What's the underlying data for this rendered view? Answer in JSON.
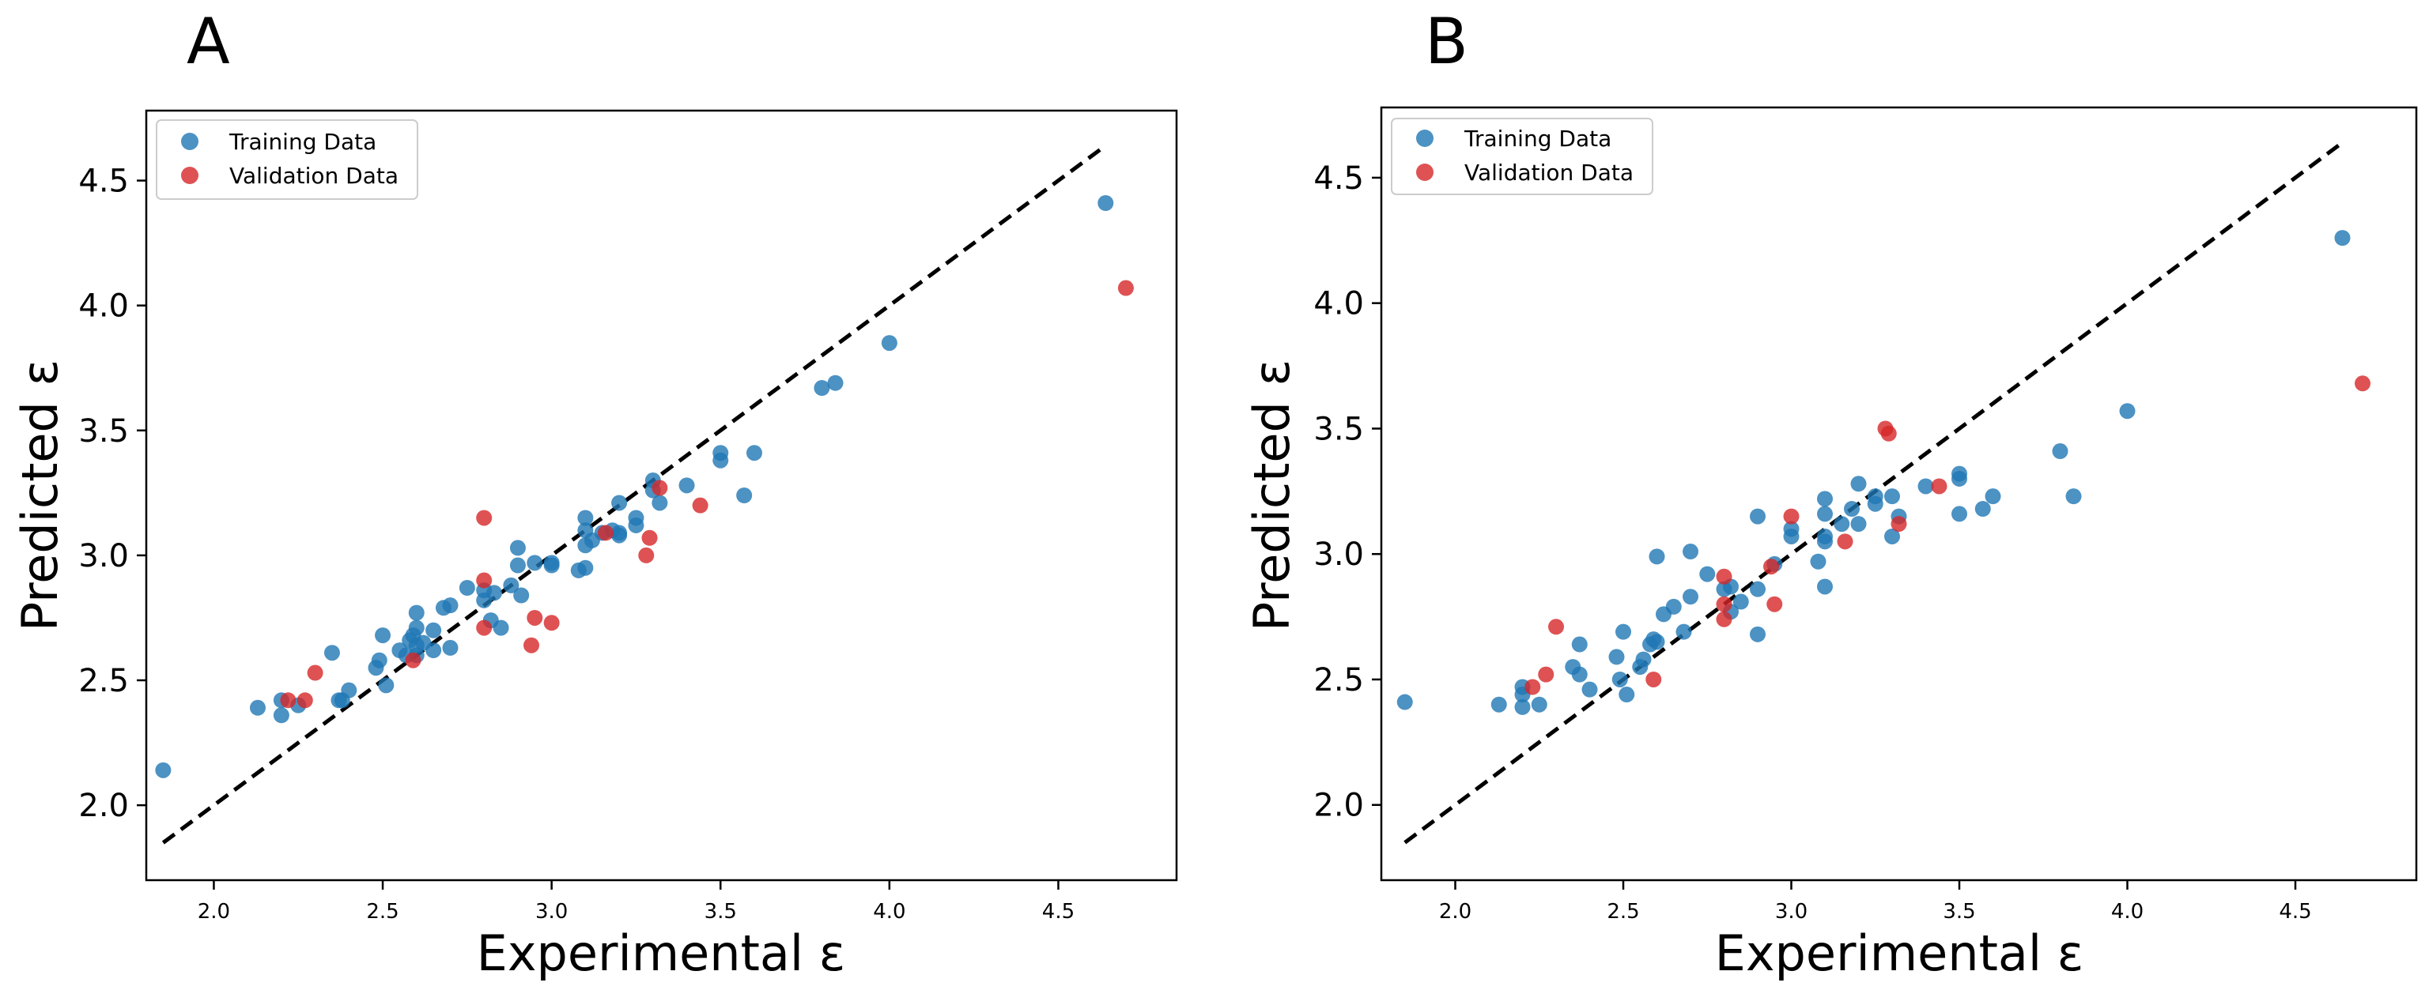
{
  "colors": {
    "training": "#1f77b4",
    "validation": "#d62728",
    "identity_line": "#000000"
  },
  "chart_data": [
    {
      "type": "scatter",
      "panel_label": "A",
      "xlabel": "Experimental ε",
      "ylabel": "Predicted ε",
      "xlim": [
        1.8,
        4.85
      ],
      "ylim": [
        1.7,
        4.78
      ],
      "xticks": [
        2.0,
        2.5,
        3.0,
        3.5,
        4.0,
        4.5
      ],
      "xtick_labels": [
        "2.0",
        "2.5",
        "3.0",
        "3.5",
        "4.0",
        "4.5"
      ],
      "yticks": [
        2.0,
        2.5,
        3.0,
        3.5,
        4.0,
        4.5
      ],
      "ytick_labels": [
        "2.0",
        "2.5",
        "3.0",
        "3.5",
        "4.0",
        "4.5"
      ],
      "legend": {
        "position": "top-left",
        "entries": [
          "Training Data",
          "Validation Data"
        ]
      },
      "grid": false,
      "identity_line": {
        "from": [
          1.85,
          1.85
        ],
        "to": [
          4.64,
          4.64
        ],
        "style": "dashed"
      },
      "series": [
        {
          "name": "Training Data",
          "points": [
            [
              1.85,
              2.14
            ],
            [
              2.13,
              2.39
            ],
            [
              2.2,
              2.36
            ],
            [
              2.2,
              2.42
            ],
            [
              2.25,
              2.4
            ],
            [
              2.35,
              2.61
            ],
            [
              2.37,
              2.42
            ],
            [
              2.38,
              2.42
            ],
            [
              2.4,
              2.46
            ],
            [
              2.48,
              2.55
            ],
            [
              2.49,
              2.58
            ],
            [
              2.5,
              2.68
            ],
            [
              2.51,
              2.48
            ],
            [
              2.55,
              2.62
            ],
            [
              2.57,
              2.6
            ],
            [
              2.58,
              2.66
            ],
            [
              2.59,
              2.68
            ],
            [
              2.6,
              2.6
            ],
            [
              2.6,
              2.64
            ],
            [
              2.6,
              2.71
            ],
            [
              2.6,
              2.77
            ],
            [
              2.62,
              2.65
            ],
            [
              2.65,
              2.62
            ],
            [
              2.65,
              2.7
            ],
            [
              2.68,
              2.79
            ],
            [
              2.7,
              2.8
            ],
            [
              2.7,
              2.63
            ],
            [
              2.75,
              2.87
            ],
            [
              2.8,
              2.82
            ],
            [
              2.8,
              2.86
            ],
            [
              2.82,
              2.74
            ],
            [
              2.83,
              2.85
            ],
            [
              2.85,
              2.71
            ],
            [
              2.88,
              2.88
            ],
            [
              2.9,
              2.96
            ],
            [
              2.9,
              3.03
            ],
            [
              2.91,
              2.84
            ],
            [
              2.95,
              2.97
            ],
            [
              3.0,
              2.96
            ],
            [
              3.0,
              2.97
            ],
            [
              3.08,
              2.94
            ],
            [
              3.1,
              2.95
            ],
            [
              3.1,
              3.04
            ],
            [
              3.1,
              3.1
            ],
            [
              3.1,
              3.15
            ],
            [
              3.12,
              3.06
            ],
            [
              3.15,
              3.09
            ],
            [
              3.18,
              3.1
            ],
            [
              3.2,
              3.08
            ],
            [
              3.2,
              3.09
            ],
            [
              3.2,
              3.21
            ],
            [
              3.25,
              3.12
            ],
            [
              3.25,
              3.15
            ],
            [
              3.3,
              3.26
            ],
            [
              3.3,
              3.3
            ],
            [
              3.32,
              3.21
            ],
            [
              3.4,
              3.28
            ],
            [
              3.5,
              3.38
            ],
            [
              3.5,
              3.41
            ],
            [
              3.57,
              3.24
            ],
            [
              3.6,
              3.41
            ],
            [
              3.8,
              3.67
            ],
            [
              3.84,
              3.69
            ],
            [
              4.0,
              3.85
            ],
            [
              4.64,
              4.41
            ]
          ]
        },
        {
          "name": "Validation Data",
          "points": [
            [
              2.22,
              2.42
            ],
            [
              2.27,
              2.42
            ],
            [
              2.3,
              2.53
            ],
            [
              2.59,
              2.58
            ],
            [
              2.8,
              2.71
            ],
            [
              2.8,
              2.9
            ],
            [
              2.8,
              3.15
            ],
            [
              2.94,
              2.64
            ],
            [
              2.95,
              2.75
            ],
            [
              3.0,
              2.73
            ],
            [
              3.16,
              3.09
            ],
            [
              3.28,
              3.0
            ],
            [
              3.29,
              3.07
            ],
            [
              3.32,
              3.27
            ],
            [
              3.44,
              3.2
            ],
            [
              4.7,
              4.07
            ]
          ]
        }
      ]
    },
    {
      "type": "scatter",
      "panel_label": "B",
      "xlabel": "Experimental ε",
      "ylabel": "Predicted ε",
      "xlim": [
        1.78,
        4.86
      ],
      "ylim": [
        1.7,
        4.78
      ],
      "xticks": [
        2.0,
        2.5,
        3.0,
        3.5,
        4.0,
        4.5
      ],
      "xtick_labels": [
        "2.0",
        "2.5",
        "3.0",
        "3.5",
        "4.0",
        "4.5"
      ],
      "yticks": [
        2.0,
        2.5,
        3.0,
        3.5,
        4.0,
        4.5
      ],
      "ytick_labels": [
        "2.0",
        "2.5",
        "3.0",
        "3.5",
        "4.0",
        "4.5"
      ],
      "legend": {
        "position": "top-left",
        "entries": [
          "Training Data",
          "Validation Data"
        ]
      },
      "grid": false,
      "identity_line": {
        "from": [
          1.85,
          1.85
        ],
        "to": [
          4.64,
          4.64
        ],
        "style": "dashed"
      },
      "series": [
        {
          "name": "Training Data",
          "points": [
            [
              1.85,
              2.41
            ],
            [
              2.13,
              2.4
            ],
            [
              2.2,
              2.39
            ],
            [
              2.2,
              2.44
            ],
            [
              2.2,
              2.47
            ],
            [
              2.25,
              2.4
            ],
            [
              2.35,
              2.55
            ],
            [
              2.37,
              2.52
            ],
            [
              2.37,
              2.64
            ],
            [
              2.4,
              2.46
            ],
            [
              2.48,
              2.59
            ],
            [
              2.49,
              2.5
            ],
            [
              2.5,
              2.69
            ],
            [
              2.51,
              2.44
            ],
            [
              2.55,
              2.55
            ],
            [
              2.56,
              2.58
            ],
            [
              2.58,
              2.64
            ],
            [
              2.59,
              2.66
            ],
            [
              2.6,
              2.65
            ],
            [
              2.6,
              2.99
            ],
            [
              2.62,
              2.76
            ],
            [
              2.65,
              2.79
            ],
            [
              2.68,
              2.69
            ],
            [
              2.7,
              2.83
            ],
            [
              2.7,
              3.01
            ],
            [
              2.75,
              2.92
            ],
            [
              2.8,
              2.86
            ],
            [
              2.82,
              2.87
            ],
            [
              2.82,
              2.77
            ],
            [
              2.85,
              2.81
            ],
            [
              2.9,
              2.68
            ],
            [
              2.9,
              2.86
            ],
            [
              2.9,
              3.15
            ],
            [
              2.95,
              2.96
            ],
            [
              3.0,
              3.07
            ],
            [
              3.0,
              3.1
            ],
            [
              3.08,
              2.97
            ],
            [
              3.1,
              2.87
            ],
            [
              3.1,
              3.05
            ],
            [
              3.1,
              3.07
            ],
            [
              3.1,
              3.16
            ],
            [
              3.1,
              3.22
            ],
            [
              3.15,
              3.12
            ],
            [
              3.18,
              3.18
            ],
            [
              3.2,
              3.12
            ],
            [
              3.2,
              3.28
            ],
            [
              3.25,
              3.2
            ],
            [
              3.25,
              3.23
            ],
            [
              3.3,
              3.07
            ],
            [
              3.3,
              3.23
            ],
            [
              3.32,
              3.15
            ],
            [
              3.4,
              3.27
            ],
            [
              3.5,
              3.16
            ],
            [
              3.5,
              3.3
            ],
            [
              3.5,
              3.32
            ],
            [
              3.57,
              3.18
            ],
            [
              3.6,
              3.23
            ],
            [
              3.8,
              3.41
            ],
            [
              3.84,
              3.23
            ],
            [
              4.0,
              3.57
            ],
            [
              4.64,
              4.26
            ]
          ]
        },
        {
          "name": "Validation Data",
          "points": [
            [
              2.23,
              2.47
            ],
            [
              2.27,
              2.52
            ],
            [
              2.3,
              2.71
            ],
            [
              2.59,
              2.5
            ],
            [
              2.8,
              2.74
            ],
            [
              2.8,
              2.8
            ],
            [
              2.8,
              2.91
            ],
            [
              2.94,
              2.95
            ],
            [
              2.95,
              2.8
            ],
            [
              3.0,
              3.15
            ],
            [
              3.16,
              3.05
            ],
            [
              3.28,
              3.5
            ],
            [
              3.29,
              3.48
            ],
            [
              3.32,
              3.12
            ],
            [
              3.44,
              3.27
            ],
            [
              4.7,
              3.68
            ]
          ]
        }
      ]
    }
  ]
}
